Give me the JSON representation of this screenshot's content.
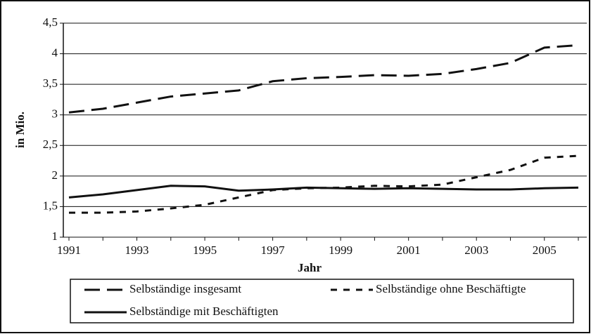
{
  "chart_data": {
    "type": "line",
    "x_label": "Jahr",
    "y_label": "in Mio.",
    "categories": [
      "1991",
      null,
      "1993",
      null,
      "1995",
      null,
      "1997",
      null,
      "1999",
      null,
      "2001",
      null,
      "2003",
      null,
      "2005",
      null
    ],
    "series": [
      {
        "name": "Selbständige insgesamt",
        "color": "#111111",
        "style": "dashed",
        "values": [
          3.04,
          3.1,
          3.2,
          3.3,
          3.35,
          3.4,
          3.55,
          3.6,
          3.62,
          3.65,
          3.64,
          3.67,
          3.75,
          3.85,
          4.1,
          4.14
        ]
      },
      {
        "name": "Selbständige ohne Beschäftigte",
        "color": "#111111",
        "style": "dotted",
        "values": [
          1.4,
          1.4,
          1.42,
          1.47,
          1.53,
          1.65,
          1.77,
          1.8,
          1.81,
          1.84,
          1.83,
          1.86,
          1.98,
          2.1,
          2.3,
          2.33
        ]
      },
      {
        "name": "Selbständige mit Beschäftigten",
        "color": "#111111",
        "style": "solid",
        "values": [
          1.65,
          1.7,
          1.77,
          1.84,
          1.83,
          1.76,
          1.78,
          1.81,
          1.8,
          1.79,
          1.8,
          1.79,
          1.78,
          1.78,
          1.8,
          1.81
        ]
      }
    ],
    "ylim": [
      1,
      4.5
    ],
    "yticks": [
      1,
      {
        "value": 1.5,
        "label": "1,5"
      },
      2,
      {
        "value": 2.5,
        "label": "2,5"
      },
      3,
      {
        "value": 3.5,
        "label": "3,5"
      },
      4,
      {
        "value": 4.5,
        "label": "4,5"
      }
    ],
    "grid": true
  }
}
